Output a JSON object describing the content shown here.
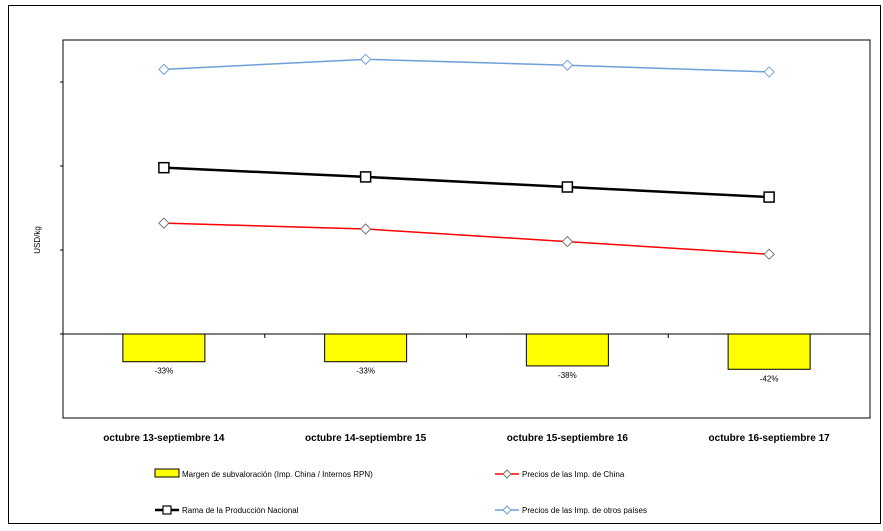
{
  "chart_data": {
    "type": "line",
    "categories": [
      "octubre 13-septiembre 14",
      "octubre 14-septiembre 15",
      "octubre 15-septiembre 16",
      "octubre 16-septiembre 17"
    ],
    "ylabel": "USD/kg",
    "ylim": [
      -1,
      3.5
    ],
    "grid": false,
    "legend_position": "bottom",
    "series": [
      {
        "name": "Margen de subvaloración (Imp. China / Internos RPN)",
        "type": "bar",
        "color": "#ffff00",
        "values": [
          -0.33,
          -0.33,
          -0.38,
          -0.42
        ],
        "labels": [
          "-33%",
          "-33%",
          "-38%",
          "-42%"
        ]
      },
      {
        "name": "Precios de las Imp. de China",
        "type": "line",
        "color": "#ff0000",
        "marker": "diamond",
        "values": [
          1.32,
          1.25,
          1.1,
          0.95
        ]
      },
      {
        "name": "Rama de la Producción Nacional",
        "type": "line",
        "color": "#000000",
        "marker": "square",
        "values": [
          1.98,
          1.87,
          1.75,
          1.63
        ]
      },
      {
        "name": "Precios de las Imp. de otros países",
        "type": "line",
        "color": "#6f9fd8",
        "marker": "diamond",
        "values": [
          3.15,
          3.27,
          3.2,
          3.12
        ]
      }
    ]
  }
}
